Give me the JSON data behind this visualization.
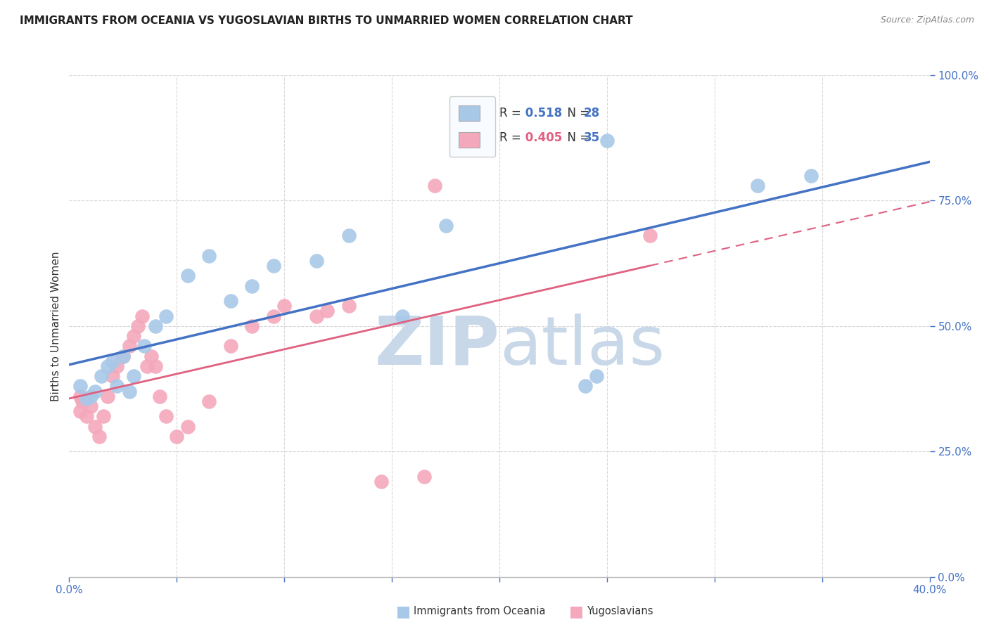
{
  "title": "IMMIGRANTS FROM OCEANIA VS YUGOSLAVIAN BIRTHS TO UNMARRIED WOMEN CORRELATION CHART",
  "source": "Source: ZipAtlas.com",
  "ylabel": "Births to Unmarried Women",
  "xlim": [
    0.0,
    0.4
  ],
  "ylim": [
    0.0,
    1.0
  ],
  "r_blue": 0.518,
  "n_blue": 28,
  "r_pink": 0.405,
  "n_pink": 35,
  "color_blue": "#a8c8e8",
  "color_pink": "#f4a8bc",
  "color_blue_line": "#4472c4",
  "color_pink_line": "#e06080",
  "watermark_zip": "ZIP",
  "watermark_atlas": "atlas",
  "watermark_color": "#dce8f0",
  "background_color": "#ffffff",
  "grid_color": "#d8d8d8",
  "blue_x": [
    0.005,
    0.008,
    0.01,
    0.012,
    0.015,
    0.018,
    0.02,
    0.022,
    0.025,
    0.028,
    0.03,
    0.035,
    0.04,
    0.045,
    0.055,
    0.065,
    0.075,
    0.085,
    0.095,
    0.115,
    0.13,
    0.155,
    0.175,
    0.24,
    0.245,
    0.32,
    0.25,
    0.345
  ],
  "blue_y": [
    0.38,
    0.355,
    0.36,
    0.37,
    0.4,
    0.42,
    0.43,
    0.38,
    0.44,
    0.37,
    0.4,
    0.46,
    0.5,
    0.52,
    0.6,
    0.64,
    0.55,
    0.58,
    0.62,
    0.63,
    0.68,
    0.52,
    0.7,
    0.38,
    0.4,
    0.78,
    0.87,
    0.8
  ],
  "pink_x": [
    0.005,
    0.005,
    0.006,
    0.008,
    0.01,
    0.012,
    0.014,
    0.016,
    0.018,
    0.02,
    0.022,
    0.025,
    0.028,
    0.03,
    0.032,
    0.034,
    0.036,
    0.038,
    0.04,
    0.042,
    0.045,
    0.05,
    0.055,
    0.065,
    0.075,
    0.085,
    0.095,
    0.1,
    0.115,
    0.12,
    0.13,
    0.145,
    0.165,
    0.17,
    0.27
  ],
  "pink_y": [
    0.36,
    0.33,
    0.35,
    0.32,
    0.34,
    0.3,
    0.28,
    0.32,
    0.36,
    0.4,
    0.42,
    0.44,
    0.46,
    0.48,
    0.5,
    0.52,
    0.42,
    0.44,
    0.42,
    0.36,
    0.32,
    0.28,
    0.3,
    0.35,
    0.46,
    0.5,
    0.52,
    0.54,
    0.52,
    0.53,
    0.54,
    0.19,
    0.2,
    0.78,
    0.68
  ],
  "title_fontsize": 11,
  "source_fontsize": 9,
  "tick_fontsize": 11,
  "ylabel_fontsize": 11
}
